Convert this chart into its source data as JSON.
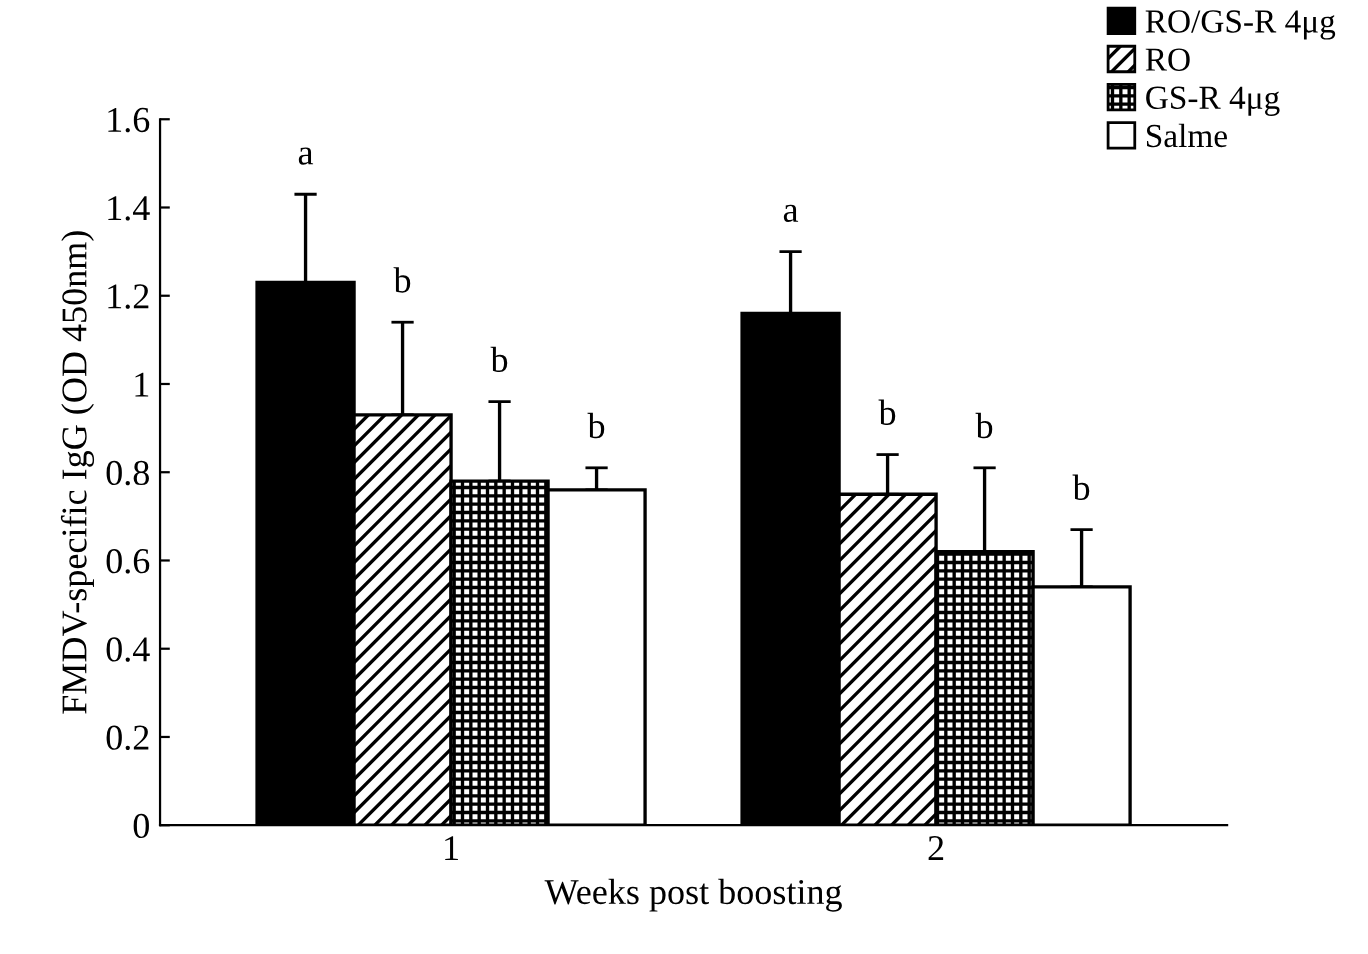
{
  "chart_data": {
    "type": "bar",
    "xlabel": "Weeks post boosting",
    "ylabel": "FMDV-specific IgG (OD 450nm)",
    "categories": [
      "1",
      "2"
    ],
    "series": [
      {
        "name": "RO/GS-R 4μg",
        "color": "#000000",
        "values": [
          1.23,
          1.16
        ],
        "errors": [
          [
            1.23,
            1.43
          ],
          [
            1.16,
            1.3
          ]
        ]
      },
      {
        "name": "RO",
        "color": "#000000",
        "values": [
          0.93,
          0.75
        ],
        "errors": [
          [
            0.93,
            1.14
          ],
          [
            0.75,
            0.84
          ]
        ]
      },
      {
        "name": "GS-R 4μg",
        "color": "#000000",
        "values": [
          0.78,
          0.62
        ],
        "errors": [
          [
            0.78,
            0.96
          ],
          [
            0.62,
            0.81
          ]
        ]
      },
      {
        "name": "Salme",
        "color": "#ffffff",
        "values": [
          0.76,
          0.54
        ],
        "errors": [
          [
            0.76,
            0.81
          ],
          [
            0.54,
            0.67
          ]
        ]
      }
    ],
    "annotations": [
      "a",
      "b",
      "b",
      "b",
      "a",
      "b",
      "b",
      "b"
    ],
    "ylim": [
      0,
      1.6
    ],
    "yticks": [
      0,
      {
        "value": 0.2,
        "label": "0.2"
      },
      {
        "value": 0.4,
        "label": "0.4"
      },
      {
        "value": 0.6,
        "label": "0.6"
      },
      {
        "value": 0.8,
        "label": "0.8"
      },
      1,
      {
        "value": 1.2,
        "label": "1.2"
      },
      {
        "value": 1.4,
        "label": "1.4"
      },
      {
        "value": 1.6,
        "label": "1.6"
      }
    ],
    "grid": false,
    "legend": "top right"
  }
}
